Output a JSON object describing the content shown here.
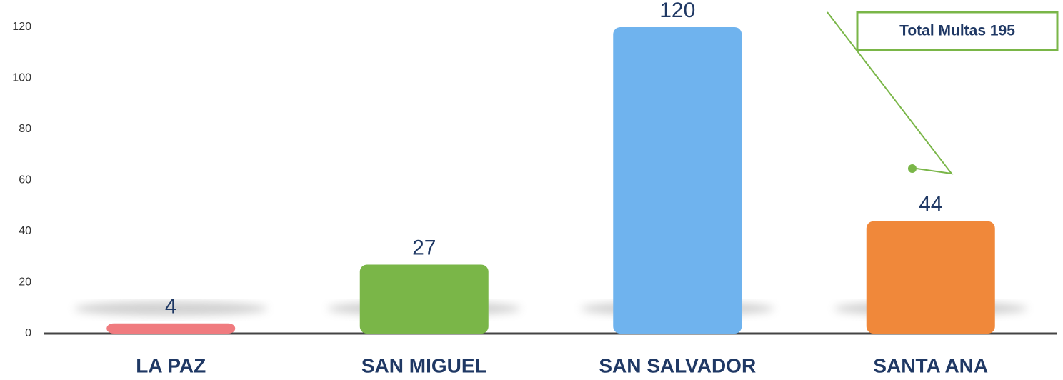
{
  "chart_data": {
    "type": "bar",
    "categories": [
      "LA PAZ",
      "SAN MIGUEL",
      "SAN SALVADOR",
      "SANTA ANA"
    ],
    "values": [
      4,
      27,
      120,
      44
    ],
    "colors": [
      "#f07b7f",
      "#7ab648",
      "#6fb3ee",
      "#f0883a"
    ],
    "ylim": [
      0,
      120
    ],
    "yticks": [
      0,
      20,
      40,
      60,
      80,
      100,
      120
    ],
    "annotation": "Total Multas 195"
  }
}
